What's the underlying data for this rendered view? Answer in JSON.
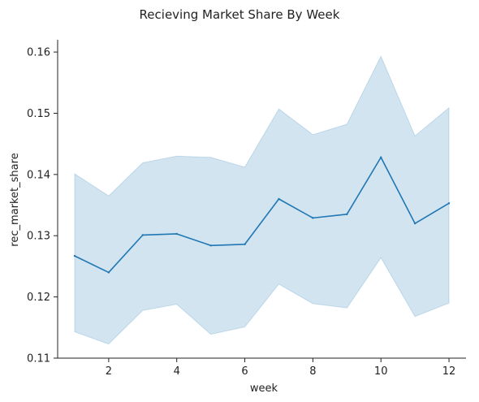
{
  "chart_data": {
    "type": "line",
    "title": "Recieving Market Share By Week",
    "xlabel": "week",
    "ylabel": "rec_market_share",
    "xlim": [
      0.5,
      12.5
    ],
    "ylim": [
      0.11,
      0.162
    ],
    "x_ticks": [
      2,
      4,
      6,
      8,
      10,
      12
    ],
    "y_ticks": [
      0.11,
      0.12,
      0.13,
      0.14,
      0.15,
      0.16
    ],
    "grid": false,
    "x": [
      1,
      2,
      3,
      4,
      5,
      6,
      7,
      8,
      9,
      10,
      11,
      12
    ],
    "series": [
      {
        "values": [
          0.1267,
          0.124,
          0.1301,
          0.1303,
          0.1284,
          0.1286,
          0.136,
          0.1329,
          0.1335,
          0.1428,
          0.132,
          0.1353
        ],
        "ci_lower": [
          0.1143,
          0.1123,
          0.1178,
          0.1188,
          0.1139,
          0.1151,
          0.1221,
          0.1189,
          0.1182,
          0.1264,
          0.1168,
          0.119
        ],
        "ci_upper": [
          0.1401,
          0.1365,
          0.1419,
          0.143,
          0.1428,
          0.1412,
          0.1507,
          0.1465,
          0.1482,
          0.1593,
          0.1463,
          0.1509
        ]
      }
    ],
    "colors": {
      "line": "#1f77b4",
      "band": "#1f77b4",
      "axis": "#222222"
    }
  }
}
